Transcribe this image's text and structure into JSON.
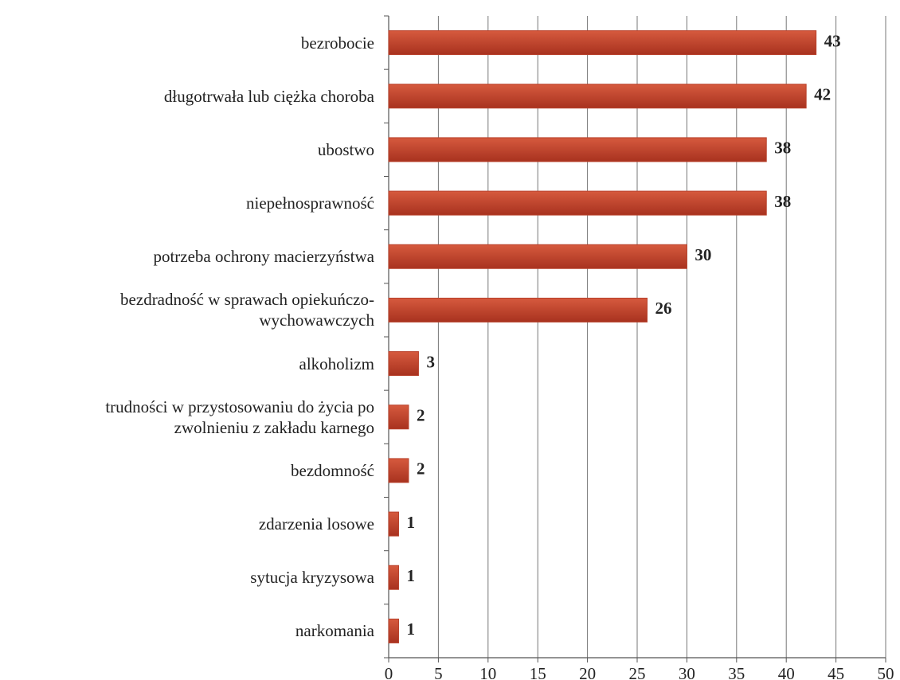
{
  "chart_data": {
    "type": "bar",
    "orientation": "horizontal",
    "categories": [
      "bezrobocie",
      "długotrwała lub ciężka choroba",
      "ubostwo",
      "niepełnosprawność",
      "potrzeba ochrony macierzyństwa",
      "bezdradność w sprawach opiekuńczo-\nwychowawczych",
      "alkoholizm",
      "trudności w przystosowaniu do życia po\nzwolnieniu z zakładu karnego",
      "bezdomność",
      "zdarzenia losowe",
      "sytucja kryzysowa",
      "narkomania"
    ],
    "values": [
      43,
      42,
      38,
      38,
      30,
      26,
      3,
      2,
      2,
      1,
      1,
      1
    ],
    "color": "#b8402a",
    "xlim": [
      0,
      50
    ],
    "xticks": [
      0,
      5,
      10,
      15,
      20,
      25,
      30,
      35,
      40,
      45,
      50
    ],
    "grid": true
  }
}
